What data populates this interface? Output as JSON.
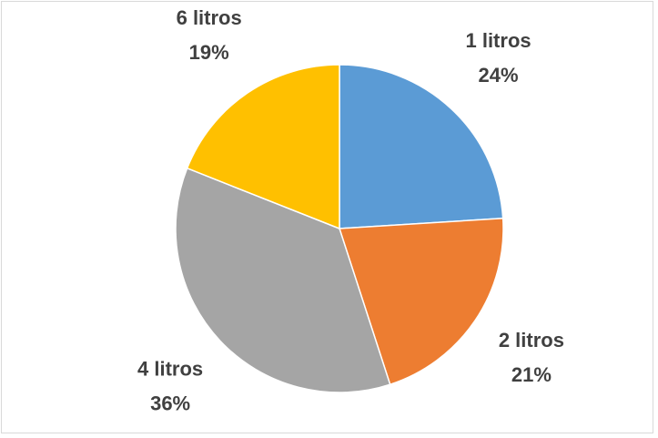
{
  "chart_data": {
    "type": "pie",
    "categories": [
      "1 litros",
      "2 litros",
      "4 litros",
      "6 litros"
    ],
    "values": [
      24,
      21,
      36,
      19
    ],
    "value_labels": [
      "24%",
      "21%",
      "36%",
      "19%"
    ],
    "colors": [
      "#5b9bd5",
      "#ed7d31",
      "#a5a5a5",
      "#ffc000"
    ]
  }
}
